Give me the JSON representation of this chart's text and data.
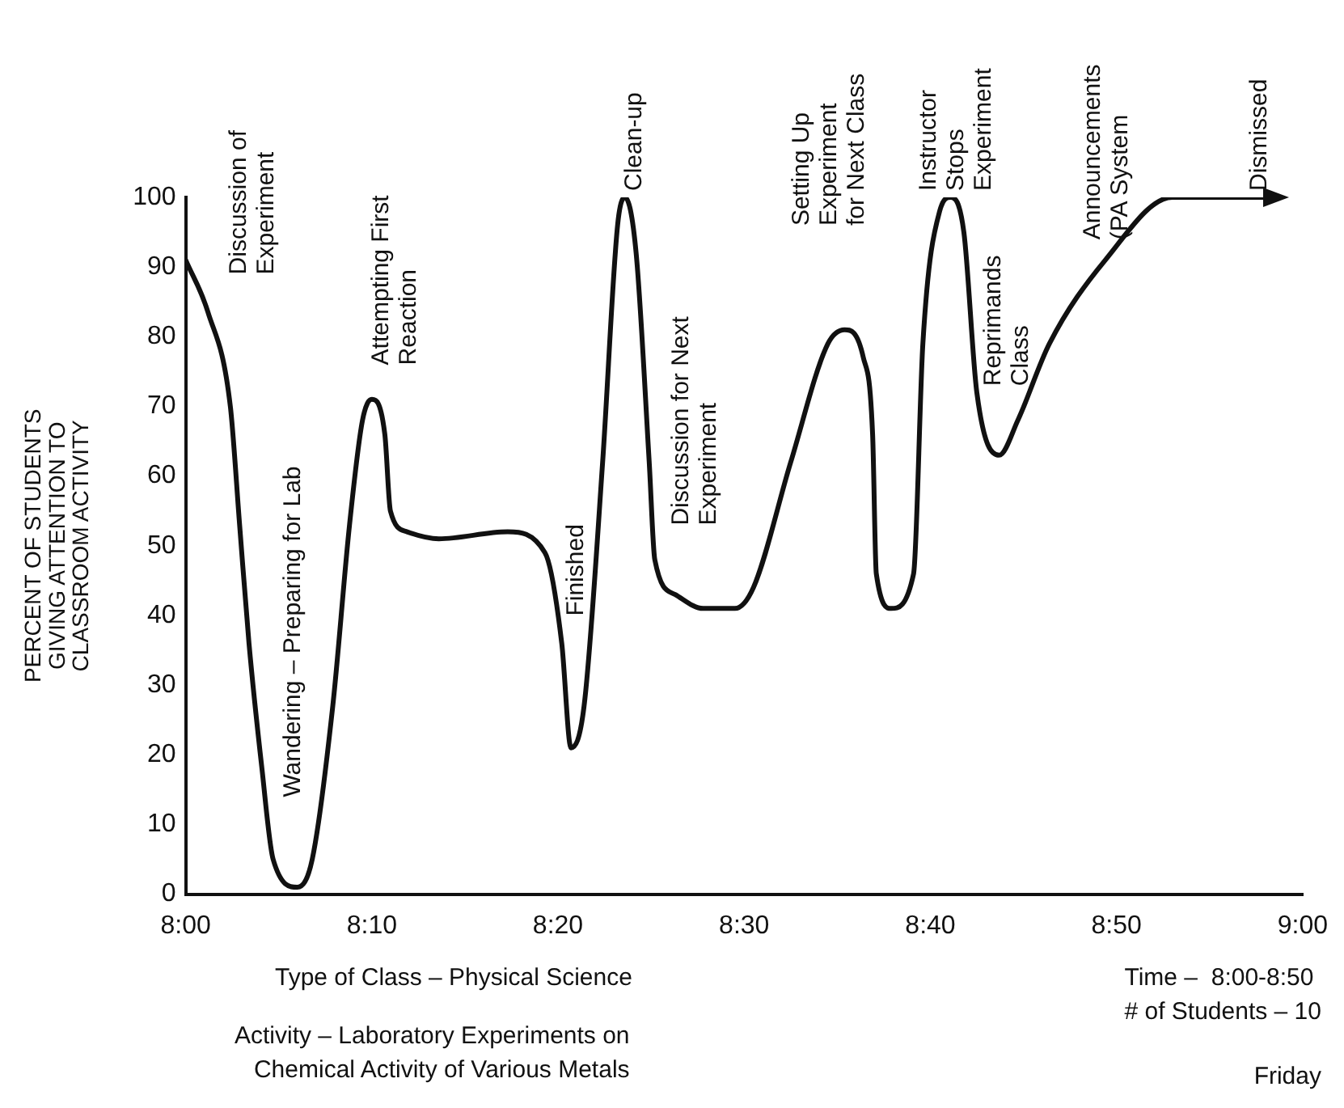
{
  "chart_data": {
    "type": "line",
    "ylabel": "PERCENT OF STUDENTS\nGIVING ATTENTION TO\nCLASSROOM ACTIVITY",
    "x": [
      8.0,
      8.02,
      8.04,
      8.0483,
      8.0567,
      8.0683,
      8.0783,
      8.1,
      8.1133,
      8.1317,
      8.1467,
      8.1583,
      8.1667,
      8.1783,
      8.1833,
      8.1983,
      8.2267,
      8.2883,
      8.3217,
      8.3367,
      8.345,
      8.3567,
      8.3733,
      8.3867,
      8.3933,
      8.4033,
      8.415,
      8.42,
      8.4383,
      8.4633,
      8.4917,
      8.5083,
      8.5417,
      8.575,
      8.59,
      8.6067,
      8.615,
      8.6183,
      8.6317,
      8.6517,
      8.66,
      8.675,
      8.685,
      8.6967,
      8.7083,
      8.7283,
      8.745,
      8.7733,
      8.8233,
      8.8833,
      8.97
    ],
    "series": [
      {
        "color": "#111111",
        "values": [
          91,
          83.5,
          70,
          53,
          36,
          18,
          5,
          1,
          5,
          27,
          53,
          68,
          71,
          66,
          55,
          52,
          51,
          52,
          49,
          36,
          21,
          27,
          62,
          96,
          100,
          92,
          62,
          48,
          43,
          41,
          41,
          44,
          62,
          79,
          81,
          77,
          66,
          46,
          41,
          46,
          79,
          98,
          100,
          95,
          72,
          63,
          68,
          79,
          91,
          100,
          100
        ]
      }
    ],
    "xlim": [
      8,
      9
    ],
    "xticks": [
      {
        "value": 8,
        "label": "8:00"
      },
      {
        "value": 8.1667,
        "label": "8:10"
      },
      {
        "value": 8.3333,
        "label": "8:20"
      },
      {
        "value": 8.5,
        "label": "8:30"
      },
      {
        "value": 8.6667,
        "label": "8:40"
      },
      {
        "value": 8.8333,
        "label": "8:50"
      },
      {
        "value": 9,
        "label": "9:00"
      }
    ],
    "ylim": [
      0,
      100
    ],
    "yticks": [
      0,
      10,
      20,
      30,
      40,
      50,
      60,
      70,
      80,
      90,
      100
    ],
    "grid": false,
    "legend": false,
    "marker": "none",
    "line_style": "solid",
    "annotations": [
      "Discussion of\nExperiment",
      "Wandering – Preparing for Lab",
      "Attempting First\nReaction",
      "Finished",
      "Clean-up",
      "Discussion for Next\nExperiment",
      "Setting Up\nExperiment\nfor Next Class",
      "Instructor\nStops\nExperiment",
      "Reprimands\nClass",
      "Announcements\n(PA System",
      "Dismissed",
      "Type of Class – Physical Science",
      "Activity – Laboratory Experiments on\nChemical Activity of Various Metals",
      "Time –  8:00-8:50\n# of Students – 10",
      "Friday"
    ]
  }
}
